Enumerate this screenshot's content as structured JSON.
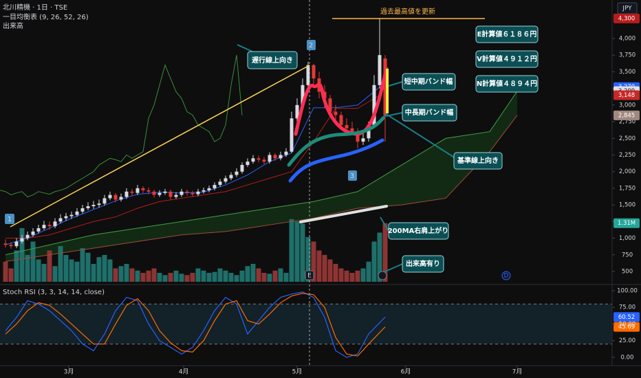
{
  "chart_data": [
    {
      "type": "candlestick",
      "title": "北川精機 · 1日 · TSE",
      "indicator": "一目均衡表 (9, 26, 52, 26)",
      "currency": "JPY",
      "x": [
        0,
        1,
        2,
        3,
        4,
        5,
        6,
        7,
        8,
        9,
        10,
        11,
        12,
        13,
        14,
        15,
        16,
        17,
        18,
        19,
        20,
        21,
        22,
        23,
        24,
        25,
        26,
        27,
        28,
        29,
        30,
        31,
        32,
        33,
        34,
        35,
        36,
        37,
        38,
        39,
        40,
        41,
        42,
        43,
        44,
        45,
        46,
        47,
        48,
        49,
        50,
        51,
        52,
        53,
        54,
        55,
        56,
        57,
        58,
        59,
        60,
        61,
        62,
        63,
        64,
        65,
        66,
        67,
        68,
        69
      ],
      "open": [
        920,
        900,
        880,
        950,
        1000,
        1050,
        1100,
        1150,
        1200,
        1180,
        1250,
        1300,
        1330,
        1350,
        1400,
        1450,
        1480,
        1500,
        1520,
        1600,
        1650,
        1580,
        1620,
        1700,
        1680,
        1750,
        1720,
        1700,
        1650,
        1680,
        1700,
        1620,
        1650,
        1700,
        1680,
        1660,
        1700,
        1720,
        1750,
        1800,
        1850,
        1900,
        1950,
        2000,
        2100,
        2150,
        2200,
        2180,
        2150,
        2250,
        2200,
        2250,
        2300,
        2800,
        3000,
        3300,
        3600,
        3400,
        3200,
        3100,
        2900,
        2850,
        2700,
        2650,
        2600,
        2450,
        2500,
        2700,
        3300,
        3700
      ],
      "high": [
        980,
        940,
        1000,
        1050,
        1100,
        1150,
        1200,
        1260,
        1250,
        1300,
        1360,
        1380,
        1400,
        1450,
        1500,
        1540,
        1560,
        1580,
        1650,
        1700,
        1680,
        1670,
        1750,
        1740,
        1800,
        1780,
        1760,
        1730,
        1720,
        1740,
        1730,
        1690,
        1740,
        1730,
        1710,
        1740,
        1760,
        1790,
        1840,
        1890,
        1940,
        1990,
        2050,
        2140,
        2200,
        2250,
        2240,
        2220,
        2290,
        2280,
        2300,
        2350,
        2900,
        3100,
        3400,
        3650,
        3620,
        3500,
        3300,
        3150,
        3000,
        2900,
        2800,
        2750,
        2650,
        2600,
        2750,
        3450,
        4300,
        3750
      ],
      "low": [
        860,
        840,
        850,
        920,
        970,
        1020,
        1070,
        1120,
        1130,
        1150,
        1220,
        1260,
        1290,
        1320,
        1370,
        1420,
        1440,
        1460,
        1490,
        1570,
        1540,
        1550,
        1590,
        1640,
        1650,
        1680,
        1660,
        1610,
        1620,
        1650,
        1580,
        1590,
        1620,
        1640,
        1620,
        1630,
        1670,
        1690,
        1720,
        1770,
        1820,
        1870,
        1920,
        1970,
        2070,
        2120,
        2140,
        2110,
        2120,
        2160,
        2170,
        2220,
        2280,
        2750,
        2950,
        3250,
        3300,
        3100,
        2950,
        2850,
        2750,
        2650,
        2600,
        2550,
        2350,
        2400,
        2450,
        2650,
        3250,
        2450
      ],
      "close": [
        900,
        880,
        950,
        1000,
        1050,
        1100,
        1150,
        1200,
        1180,
        1250,
        1300,
        1330,
        1350,
        1400,
        1450,
        1480,
        1500,
        1520,
        1600,
        1650,
        1580,
        1620,
        1700,
        1680,
        1750,
        1720,
        1700,
        1650,
        1680,
        1700,
        1620,
        1650,
        1700,
        1680,
        1660,
        1700,
        1720,
        1750,
        1800,
        1850,
        1900,
        1950,
        2000,
        2100,
        2150,
        2200,
        2180,
        2150,
        2250,
        2200,
        2250,
        2300,
        2800,
        3000,
        3300,
        3600,
        3400,
        3200,
        3100,
        2900,
        2850,
        2700,
        2650,
        2600,
        2450,
        2500,
        2700,
        3300,
        3750,
        2845
      ],
      "up_color": "#d8dbe2",
      "down_color": "#e53935",
      "xlim": [
        -1,
        110.25
      ],
      "xticks": [
        {
          "value": 11.5,
          "label": "3月"
        },
        {
          "value": 32.4,
          "label": "4月"
        },
        {
          "value": 53,
          "label": "5月"
        },
        {
          "value": 72.75,
          "label": "6月"
        },
        {
          "value": 93,
          "label": "7月"
        }
      ],
      "ylim": [
        314,
        4578
      ],
      "yticks": [
        500,
        750,
        {
          "value": 1000,
          "label": "1,000"
        },
        {
          "value": 1250,
          "label": "1,250"
        },
        {
          "value": 1500,
          "label": "1,500"
        },
        {
          "value": 1750,
          "label": "1,750"
        },
        {
          "value": 2000,
          "label": "2,000"
        },
        {
          "value": 2250,
          "label": "2,250"
        },
        {
          "value": 2500,
          "label": "2,500"
        },
        {
          "value": 2750,
          "label": "2,750"
        },
        {
          "value": 3000,
          "label": "3,000"
        },
        {
          "value": 3250,
          "label": "3,250"
        },
        {
          "value": 3500,
          "label": "3,500"
        },
        {
          "value": 3750,
          "label": "3,750"
        },
        {
          "value": 4000,
          "label": "4,000"
        }
      ],
      "series": [
        {
          "color": "#2962ff",
          "x": [
            0,
            4,
            8,
            12,
            16,
            20,
            24,
            28,
            32,
            36,
            40,
            44,
            48,
            52,
            56,
            60,
            64,
            68
          ],
          "values": [
            900,
            1000,
            1150,
            1300,
            1430,
            1560,
            1660,
            1690,
            1680,
            1690,
            1800,
            1950,
            2150,
            2280,
            2960,
            2960,
            3000,
            3270
          ]
        },
        {
          "color": "#b71c1c",
          "x": [
            0,
            4,
            8,
            12,
            16,
            20,
            24,
            28,
            32,
            36,
            40,
            44,
            48,
            52,
            56,
            60,
            64,
            68
          ],
          "values": [
            1000,
            1000,
            1050,
            1150,
            1250,
            1320,
            1450,
            1550,
            1600,
            1650,
            1700,
            1800,
            1900,
            2000,
            2450,
            2950,
            2950,
            3148
          ]
        },
        {
          "color": "#43a047",
          "x": [
            0,
            8,
            16,
            24,
            32,
            40,
            48,
            56,
            64,
            72,
            80,
            88,
            93
          ],
          "values": [
            750,
            900,
            1050,
            1150,
            1250,
            1350,
            1450,
            1550,
            1700,
            2100,
            2500,
            2600,
            3209
          ]
        },
        {
          "color": "#a34a3a",
          "x": [
            0,
            8,
            16,
            24,
            32,
            40,
            48,
            56,
            64,
            72,
            80,
            88,
            93
          ],
          "values": [
            650,
            750,
            850,
            950,
            1050,
            1100,
            1200,
            1300,
            1450,
            1500,
            1600,
            2300,
            2845
          ]
        }
      ],
      "cloud_color": "#1b5e20",
      "lagging": {
        "color": "#388e3c",
        "shift": -26
      },
      "price_labels": [
        {
          "value": 4300,
          "label": "4,300",
          "color": "#b71c1c"
        },
        {
          "value": 3270,
          "label": "3,270",
          "color": "#2962ff"
        },
        {
          "value": 3209,
          "label": "3,209",
          "color": "#e0e0e0"
        },
        {
          "value": 3148,
          "label": "3,148",
          "color": "#c62828"
        },
        {
          "value": 2845,
          "label": "2,845",
          "color": "#a1887f"
        }
      ],
      "volume": {
        "label": "出来高",
        "ylim": [
          0,
          6300000
        ],
        "up_color": "#1f6f6a",
        "down_color": "#8e3434",
        "values": [
          450000,
          300000,
          700000,
          1200000,
          600000,
          900000,
          500000,
          400000,
          700000,
          350000,
          800000,
          600000,
          500000,
          450000,
          750000,
          650000,
          400000,
          550000,
          600000,
          500000,
          300000,
          350000,
          400000,
          300000,
          250000,
          200000,
          250000,
          300000,
          200000,
          150000,
          200000,
          250000,
          180000,
          150000,
          200000,
          300000,
          250000,
          200000,
          220000,
          300000,
          250000,
          200000,
          150000,
          250000,
          350000,
          400000,
          300000,
          200000,
          180000,
          250000,
          300000,
          200000,
          1400000,
          1350000,
          1300000,
          1000000,
          900000,
          700000,
          600000,
          500000,
          400000,
          300000,
          250000,
          200000,
          250000,
          300000,
          450000,
          900000,
          1100000,
          1310000
        ],
        "badge": {
          "value": 1310000,
          "label": "1.31M",
          "color": "#26a69a"
        }
      },
      "annotations": {
        "record": "過去最高値を更新",
        "lagging_up": "遅行線上向き",
        "short_band": "短中期バンド幅",
        "long_band": "中長期バンド幅",
        "base_up": "基準線上向き",
        "ma200": "200MA右肩上がり",
        "volume_up": "出来高有り",
        "e_calc": "E計算値６１８６円",
        "v_calc": "V計算値４９１２円",
        "n_calc": "N計算値４８９４円"
      },
      "markers": [
        "1",
        "2",
        "3"
      ],
      "events": [
        "E",
        "D"
      ]
    },
    {
      "type": "line",
      "title": "Stoch RSI (3, 3, 14, 14, close)",
      "x": [
        0,
        2,
        4,
        6,
        8,
        10,
        12,
        14,
        16,
        18,
        20,
        22,
        24,
        26,
        28,
        30,
        32,
        34,
        36,
        38,
        40,
        42,
        44,
        46,
        48,
        50,
        52,
        54,
        56,
        58,
        60,
        62,
        64,
        66,
        69
      ],
      "series": [
        {
          "color": "#2962ff",
          "values": [
            40,
            60,
            85,
            80,
            70,
            55,
            40,
            20,
            10,
            35,
            70,
            90,
            85,
            50,
            25,
            15,
            5,
            15,
            40,
            70,
            90,
            80,
            35,
            55,
            75,
            90,
            95,
            98,
            90,
            60,
            10,
            0,
            5,
            35,
            60.52
          ]
        },
        {
          "color": "#ff6d00",
          "values": [
            35,
            50,
            70,
            82,
            78,
            65,
            50,
            35,
            20,
            20,
            50,
            78,
            88,
            70,
            40,
            22,
            10,
            8,
            25,
            55,
            80,
            85,
            55,
            50,
            65,
            82,
            92,
            96,
            94,
            75,
            30,
            5,
            2,
            20,
            45.69
          ]
        }
      ],
      "ylim": [
        -12.4,
        108.2
      ],
      "yticks": [
        {
          "value": 0,
          "label": "0.00"
        },
        {
          "value": 25,
          "label": "25.00"
        },
        {
          "value": 50,
          "label": "50.00"
        },
        {
          "value": 75,
          "label": "75.00"
        },
        {
          "value": 100,
          "label": "100.00"
        }
      ],
      "bands": [
        20,
        80
      ]
    }
  ]
}
